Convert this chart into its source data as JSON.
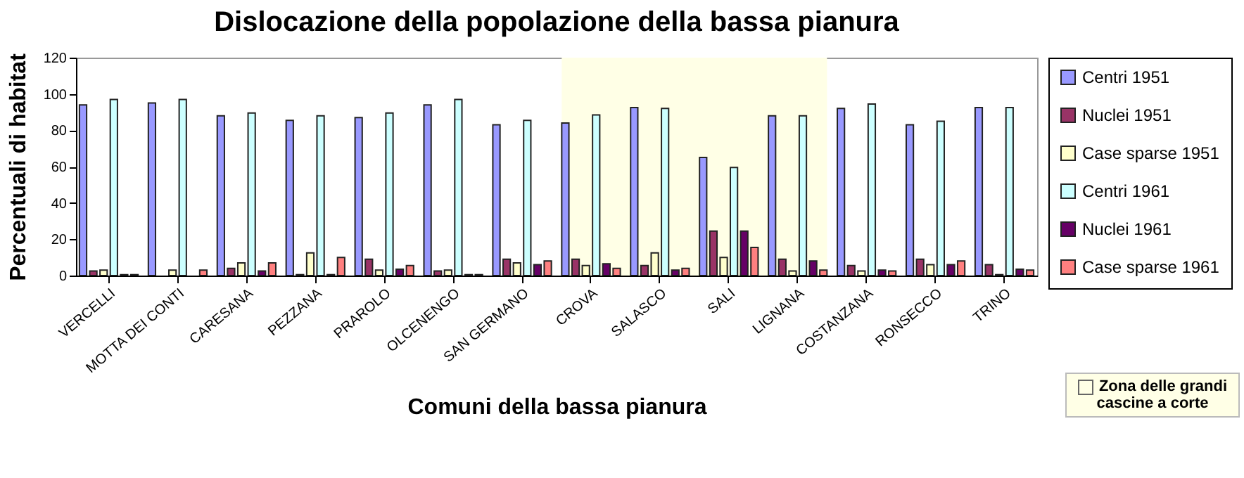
{
  "chart_data": {
    "type": "bar",
    "title": "Dislocazione della popolazione della bassa pianura",
    "xlabel": "Comuni della bassa pianura",
    "ylabel": "Percentuali di habitat",
    "categories": [
      "VERCELLI",
      "MOTTA DEI CONTI",
      "CARESANA",
      "PEZZANA",
      "PRAROLO",
      "OLCENENGO",
      "SAN GERMANO",
      "CROVA",
      "SALASCO",
      "SALI",
      "LIGNANA",
      "COSTANZANA",
      "RONSECCO",
      "TRINO"
    ],
    "series": [
      {
        "name": "Centri 1951",
        "color": "#9999ff",
        "values": [
          94,
          95,
          88,
          85.5,
          87,
          94,
          83,
          84,
          92.5,
          65,
          88,
          92,
          83,
          92.5
        ]
      },
      {
        "name": "Nuclei 1951",
        "color": "#993366",
        "values": [
          2.5,
          0,
          4,
          0.5,
          9,
          2.5,
          9,
          9,
          5.5,
          24.5,
          9,
          5.5,
          9,
          6
        ]
      },
      {
        "name": "Case sparse 1951",
        "color": "#ffffcc",
        "values": [
          3,
          3,
          7,
          12.5,
          3,
          3,
          7,
          5.5,
          12.5,
          10,
          2.5,
          2.5,
          6,
          0.5
        ]
      },
      {
        "name": "Centri 1961",
        "color": "#ccffff",
        "values": [
          97,
          97,
          89.5,
          88,
          89.5,
          97,
          85.5,
          88.5,
          92,
          59.5,
          88,
          94.5,
          85,
          92.5
        ]
      },
      {
        "name": "Nuclei 1961",
        "color": "#660066",
        "values": [
          0.5,
          0,
          2.5,
          0.5,
          3.5,
          0.5,
          6,
          6.5,
          3,
          24.5,
          8,
          3,
          6,
          3.5
        ]
      },
      {
        "name": "Case sparse 1961",
        "color": "#ff8080",
        "values": [
          0.5,
          3,
          7,
          10,
          5.5,
          0.5,
          8,
          4,
          4,
          15.5,
          3,
          2.5,
          8,
          3
        ]
      }
    ],
    "ylim": [
      0,
      120
    ],
    "yticks": [
      0,
      20,
      40,
      60,
      80,
      100,
      120
    ],
    "grid": false,
    "legend": "right",
    "bands": [
      {
        "axis": "x",
        "from": "CROVA",
        "to": "LIGNANA",
        "label": "Zona delle grandi cascine a corte",
        "color": "#ffffe6"
      }
    ]
  }
}
